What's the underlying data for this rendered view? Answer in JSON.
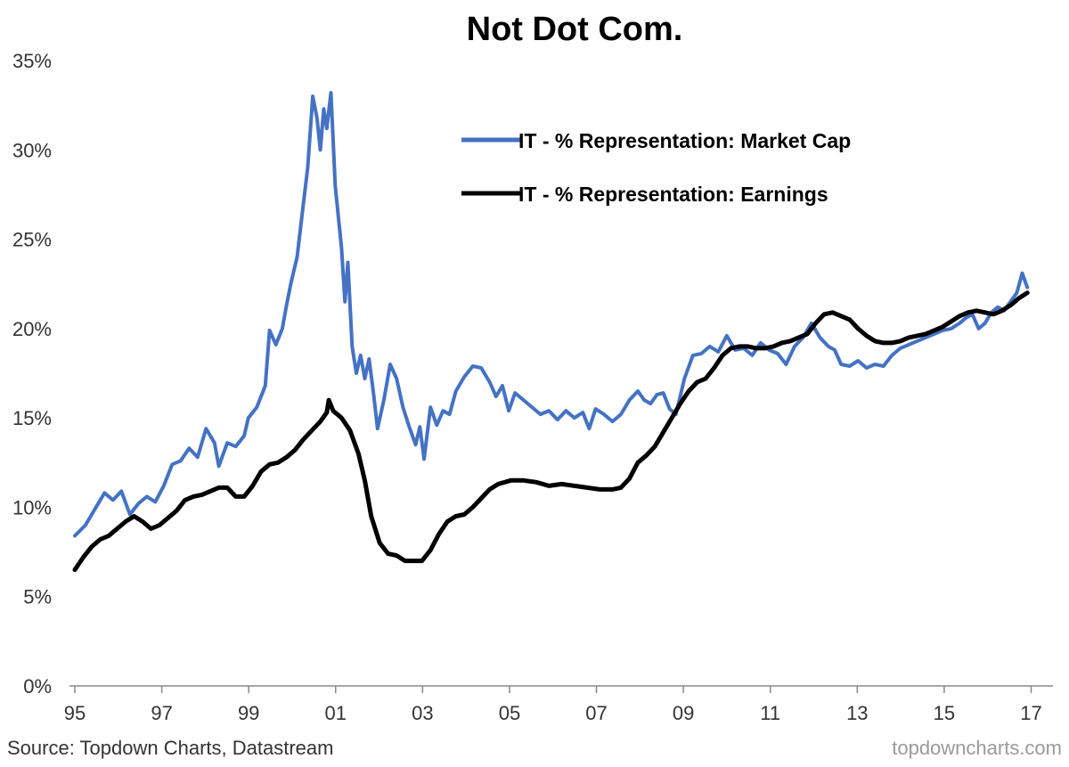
{
  "chart_data": {
    "type": "line",
    "title": "Not Dot Com.",
    "xlabel": "",
    "ylabel": "",
    "xlim": [
      1995,
      2017.6
    ],
    "ylim": [
      0,
      35
    ],
    "x_ticks": [
      1995,
      1997,
      1999,
      2001,
      2003,
      2005,
      2007,
      2009,
      2011,
      2013,
      2015,
      2017
    ],
    "x_tick_labels": [
      "95",
      "97",
      "99",
      "01",
      "03",
      "05",
      "07",
      "09",
      "11",
      "13",
      "15",
      "17"
    ],
    "y_ticks": [
      0,
      5,
      10,
      15,
      20,
      25,
      30,
      35
    ],
    "y_tick_labels": [
      "0%",
      "5%",
      "10%",
      "15%",
      "20%",
      "25%",
      "30%",
      "35%"
    ],
    "grid": false,
    "legend_position": "top-center",
    "series": [
      {
        "name": "IT - % Representation: Market Cap",
        "color": "#4472C4",
        "points": [
          [
            1995.0,
            8.4
          ],
          [
            1995.25,
            9.0
          ],
          [
            1995.5,
            10.0
          ],
          [
            1995.7,
            10.8
          ],
          [
            1995.9,
            10.4
          ],
          [
            1996.1,
            10.9
          ],
          [
            1996.3,
            9.6
          ],
          [
            1996.5,
            10.2
          ],
          [
            1996.7,
            10.6
          ],
          [
            1996.9,
            10.3
          ],
          [
            1997.1,
            11.2
          ],
          [
            1997.3,
            12.4
          ],
          [
            1997.5,
            12.6
          ],
          [
            1997.7,
            13.3
          ],
          [
            1997.9,
            12.8
          ],
          [
            1998.1,
            14.4
          ],
          [
            1998.3,
            13.6
          ],
          [
            1998.4,
            12.3
          ],
          [
            1998.6,
            13.6
          ],
          [
            1998.8,
            13.4
          ],
          [
            1999.0,
            14.0
          ],
          [
            1999.1,
            15.0
          ],
          [
            1999.3,
            15.6
          ],
          [
            1999.5,
            16.8
          ],
          [
            1999.6,
            19.9
          ],
          [
            1999.75,
            19.1
          ],
          [
            1999.9,
            20.0
          ],
          [
            2000.0,
            21.3
          ],
          [
            2000.1,
            22.5
          ],
          [
            2000.25,
            24.0
          ],
          [
            2000.4,
            27.0
          ],
          [
            2000.5,
            29.0
          ],
          [
            2000.62,
            33.0
          ],
          [
            2000.72,
            31.8
          ],
          [
            2000.8,
            30.0
          ],
          [
            2000.88,
            32.3
          ],
          [
            2000.95,
            31.2
          ],
          [
            2001.05,
            33.2
          ],
          [
            2001.15,
            28.0
          ],
          [
            2001.3,
            24.5
          ],
          [
            2001.38,
            21.5
          ],
          [
            2001.45,
            23.7
          ],
          [
            2001.55,
            19.0
          ],
          [
            2001.65,
            17.5
          ],
          [
            2001.75,
            18.5
          ],
          [
            2001.85,
            17.2
          ],
          [
            2001.95,
            18.3
          ],
          [
            2002.05,
            16.5
          ],
          [
            2002.15,
            14.4
          ],
          [
            2002.3,
            16.0
          ],
          [
            2002.45,
            18.0
          ],
          [
            2002.6,
            17.2
          ],
          [
            2002.75,
            15.6
          ],
          [
            2002.9,
            14.5
          ],
          [
            2003.05,
            13.5
          ],
          [
            2003.15,
            14.5
          ],
          [
            2003.25,
            12.7
          ],
          [
            2003.4,
            15.6
          ],
          [
            2003.55,
            14.6
          ],
          [
            2003.7,
            15.4
          ],
          [
            2003.85,
            15.2
          ],
          [
            2004.0,
            16.5
          ],
          [
            2004.2,
            17.3
          ],
          [
            2004.4,
            17.9
          ],
          [
            2004.6,
            17.8
          ],
          [
            2004.8,
            17.0
          ],
          [
            2004.95,
            16.2
          ],
          [
            2005.1,
            16.8
          ],
          [
            2005.25,
            15.4
          ],
          [
            2005.4,
            16.4
          ],
          [
            2005.6,
            16.0
          ],
          [
            2005.8,
            15.6
          ],
          [
            2006.0,
            15.2
          ],
          [
            2006.2,
            15.4
          ],
          [
            2006.4,
            14.9
          ],
          [
            2006.6,
            15.4
          ],
          [
            2006.8,
            15.0
          ],
          [
            2007.0,
            15.3
          ],
          [
            2007.15,
            14.4
          ],
          [
            2007.3,
            15.5
          ],
          [
            2007.5,
            15.2
          ],
          [
            2007.7,
            14.8
          ],
          [
            2007.9,
            15.2
          ],
          [
            2008.1,
            16.0
          ],
          [
            2008.3,
            16.5
          ],
          [
            2008.45,
            16.0
          ],
          [
            2008.6,
            15.8
          ],
          [
            2008.75,
            16.3
          ],
          [
            2008.9,
            16.4
          ],
          [
            2009.05,
            15.5
          ],
          [
            2009.2,
            15.2
          ],
          [
            2009.4,
            17.2
          ],
          [
            2009.6,
            18.5
          ],
          [
            2009.8,
            18.6
          ],
          [
            2010.0,
            19.0
          ],
          [
            2010.2,
            18.7
          ],
          [
            2010.4,
            19.6
          ],
          [
            2010.6,
            18.8
          ],
          [
            2010.8,
            18.9
          ],
          [
            2011.0,
            18.5
          ],
          [
            2011.2,
            19.2
          ],
          [
            2011.4,
            18.8
          ],
          [
            2011.6,
            18.6
          ],
          [
            2011.8,
            18.0
          ],
          [
            2012.0,
            19.0
          ],
          [
            2012.2,
            19.5
          ],
          [
            2012.4,
            20.3
          ],
          [
            2012.6,
            19.5
          ],
          [
            2012.8,
            19.0
          ],
          [
            2012.95,
            18.8
          ],
          [
            2013.1,
            18.0
          ],
          [
            2013.3,
            17.9
          ],
          [
            2013.5,
            18.2
          ],
          [
            2013.7,
            17.8
          ],
          [
            2013.9,
            18.0
          ],
          [
            2014.1,
            17.9
          ],
          [
            2014.3,
            18.5
          ],
          [
            2014.5,
            18.9
          ],
          [
            2014.7,
            19.1
          ],
          [
            2014.9,
            19.3
          ],
          [
            2015.1,
            19.5
          ],
          [
            2015.3,
            19.7
          ],
          [
            2015.5,
            19.9
          ],
          [
            2015.7,
            20.0
          ],
          [
            2015.9,
            20.3
          ],
          [
            2016.05,
            20.6
          ],
          [
            2016.2,
            20.8
          ],
          [
            2016.35,
            20.0
          ],
          [
            2016.5,
            20.3
          ],
          [
            2016.65,
            20.9
          ],
          [
            2016.8,
            21.2
          ],
          [
            2016.95,
            21.0
          ],
          [
            2017.1,
            21.5
          ],
          [
            2017.25,
            22.0
          ],
          [
            2017.38,
            23.1
          ],
          [
            2017.5,
            22.3
          ]
        ]
      },
      {
        "name": "IT - % Representation: Earnings",
        "color": "#000000",
        "points": [
          [
            1995.0,
            6.5
          ],
          [
            1995.2,
            7.2
          ],
          [
            1995.4,
            7.8
          ],
          [
            1995.6,
            8.2
          ],
          [
            1995.8,
            8.4
          ],
          [
            1996.0,
            8.8
          ],
          [
            1996.2,
            9.2
          ],
          [
            1996.4,
            9.5
          ],
          [
            1996.6,
            9.2
          ],
          [
            1996.8,
            8.8
          ],
          [
            1997.0,
            9.0
          ],
          [
            1997.2,
            9.4
          ],
          [
            1997.4,
            9.8
          ],
          [
            1997.6,
            10.4
          ],
          [
            1997.8,
            10.6
          ],
          [
            1998.0,
            10.7
          ],
          [
            1998.2,
            10.9
          ],
          [
            1998.4,
            11.1
          ],
          [
            1998.6,
            11.1
          ],
          [
            1998.8,
            10.6
          ],
          [
            1999.0,
            10.6
          ],
          [
            1999.2,
            11.2
          ],
          [
            1999.4,
            12.0
          ],
          [
            1999.6,
            12.4
          ],
          [
            1999.8,
            12.5
          ],
          [
            2000.0,
            12.8
          ],
          [
            2000.2,
            13.2
          ],
          [
            2000.4,
            13.8
          ],
          [
            2000.6,
            14.3
          ],
          [
            2000.8,
            14.8
          ],
          [
            2000.95,
            15.3
          ],
          [
            2001.0,
            16.0
          ],
          [
            2001.1,
            15.4
          ],
          [
            2001.3,
            15.0
          ],
          [
            2001.5,
            14.3
          ],
          [
            2001.7,
            13.0
          ],
          [
            2001.85,
            11.5
          ],
          [
            2002.0,
            9.5
          ],
          [
            2002.2,
            8.0
          ],
          [
            2002.4,
            7.4
          ],
          [
            2002.6,
            7.3
          ],
          [
            2002.8,
            7.0
          ],
          [
            2003.0,
            7.0
          ],
          [
            2003.2,
            7.0
          ],
          [
            2003.4,
            7.6
          ],
          [
            2003.6,
            8.5
          ],
          [
            2003.8,
            9.2
          ],
          [
            2004.0,
            9.5
          ],
          [
            2004.2,
            9.6
          ],
          [
            2004.4,
            10.0
          ],
          [
            2004.6,
            10.5
          ],
          [
            2004.8,
            11.0
          ],
          [
            2005.0,
            11.3
          ],
          [
            2005.3,
            11.5
          ],
          [
            2005.6,
            11.5
          ],
          [
            2005.9,
            11.4
          ],
          [
            2006.2,
            11.2
          ],
          [
            2006.5,
            11.3
          ],
          [
            2006.8,
            11.2
          ],
          [
            2007.1,
            11.1
          ],
          [
            2007.4,
            11.0
          ],
          [
            2007.7,
            11.0
          ],
          [
            2007.9,
            11.1
          ],
          [
            2008.1,
            11.6
          ],
          [
            2008.3,
            12.5
          ],
          [
            2008.5,
            12.9
          ],
          [
            2008.7,
            13.4
          ],
          [
            2008.9,
            14.2
          ],
          [
            2009.1,
            15.0
          ],
          [
            2009.3,
            15.8
          ],
          [
            2009.5,
            16.5
          ],
          [
            2009.7,
            17.0
          ],
          [
            2009.9,
            17.2
          ],
          [
            2010.1,
            17.8
          ],
          [
            2010.3,
            18.5
          ],
          [
            2010.5,
            18.9
          ],
          [
            2010.7,
            19.0
          ],
          [
            2010.9,
            19.0
          ],
          [
            2011.1,
            18.9
          ],
          [
            2011.3,
            18.9
          ],
          [
            2011.5,
            19.0
          ],
          [
            2011.7,
            19.2
          ],
          [
            2011.9,
            19.3
          ],
          [
            2012.1,
            19.5
          ],
          [
            2012.3,
            19.7
          ],
          [
            2012.5,
            20.3
          ],
          [
            2012.7,
            20.8
          ],
          [
            2012.9,
            20.9
          ],
          [
            2013.1,
            20.7
          ],
          [
            2013.3,
            20.5
          ],
          [
            2013.5,
            20.0
          ],
          [
            2013.7,
            19.6
          ],
          [
            2013.9,
            19.3
          ],
          [
            2014.1,
            19.2
          ],
          [
            2014.3,
            19.2
          ],
          [
            2014.5,
            19.3
          ],
          [
            2014.7,
            19.5
          ],
          [
            2014.9,
            19.6
          ],
          [
            2015.1,
            19.7
          ],
          [
            2015.3,
            19.9
          ],
          [
            2015.5,
            20.1
          ],
          [
            2015.7,
            20.4
          ],
          [
            2015.9,
            20.7
          ],
          [
            2016.1,
            20.9
          ],
          [
            2016.3,
            21.0
          ],
          [
            2016.5,
            20.9
          ],
          [
            2016.7,
            20.8
          ],
          [
            2016.9,
            21.0
          ],
          [
            2017.1,
            21.3
          ],
          [
            2017.3,
            21.7
          ],
          [
            2017.5,
            22.0
          ]
        ]
      }
    ],
    "source": "Source: Topdown Charts, Datastream",
    "watermark": "topdowncharts.com"
  }
}
